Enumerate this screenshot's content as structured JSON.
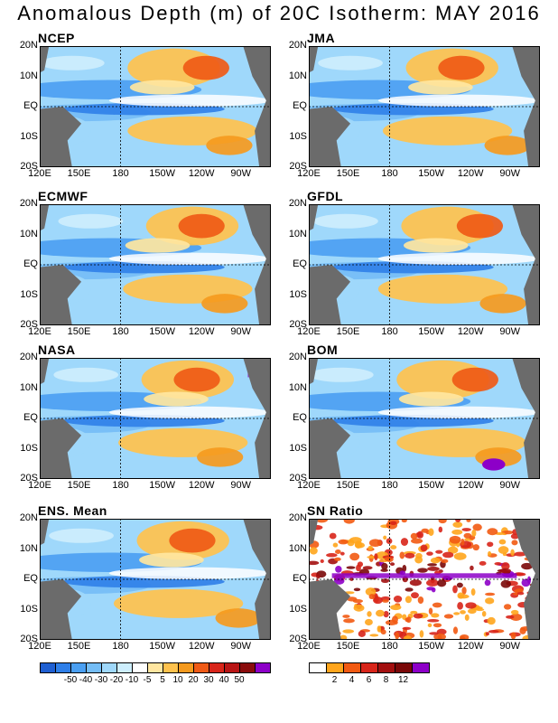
{
  "title": "Anomalous Depth (m) of 20C Isotherm: MAY 2016",
  "y_ticks": [
    "20N",
    "10N",
    "EQ",
    "10S",
    "20S"
  ],
  "x_ticks": [
    "120E",
    "150E",
    "180",
    "150W",
    "120W",
    "90W"
  ],
  "panels": [
    {
      "name": "NCEP",
      "col": 0,
      "row": 0
    },
    {
      "name": "JMA",
      "col": 1,
      "row": 0
    },
    {
      "name": "ECMWF",
      "col": 0,
      "row": 1
    },
    {
      "name": "GFDL",
      "col": 1,
      "row": 1
    },
    {
      "name": "NASA",
      "col": 0,
      "row": 2
    },
    {
      "name": "BOM",
      "col": 1,
      "row": 2
    },
    {
      "name": "ENS. Mean",
      "col": 0,
      "row": 3
    },
    {
      "name": "SN Ratio",
      "col": 1,
      "row": 3
    }
  ],
  "colorbar_anomaly": {
    "colors": [
      "#1f5fd1",
      "#2f7fe8",
      "#4a9ff2",
      "#74bdf6",
      "#9fd8fb",
      "#cdeefd",
      "#ffffff",
      "#ffe6a0",
      "#ffc24d",
      "#f59a1e",
      "#ef5a16",
      "#d8251a",
      "#b81515",
      "#8a0c0c",
      "#8d00c8"
    ],
    "labels": [
      "-50",
      "-40",
      "-30",
      "-20",
      "-10",
      "-5",
      "5",
      "10",
      "20",
      "30",
      "40",
      "50"
    ]
  },
  "colorbar_sn": {
    "colors": [
      "#ffffff",
      "#ffa51c",
      "#f25a12",
      "#d8251a",
      "#a30f0f",
      "#7a0808",
      "#8d00c8"
    ],
    "labels": [
      "2",
      "4",
      "6",
      "8",
      "12"
    ]
  },
  "colors": {
    "land": "#6b6b6b",
    "frame": "#000000"
  }
}
